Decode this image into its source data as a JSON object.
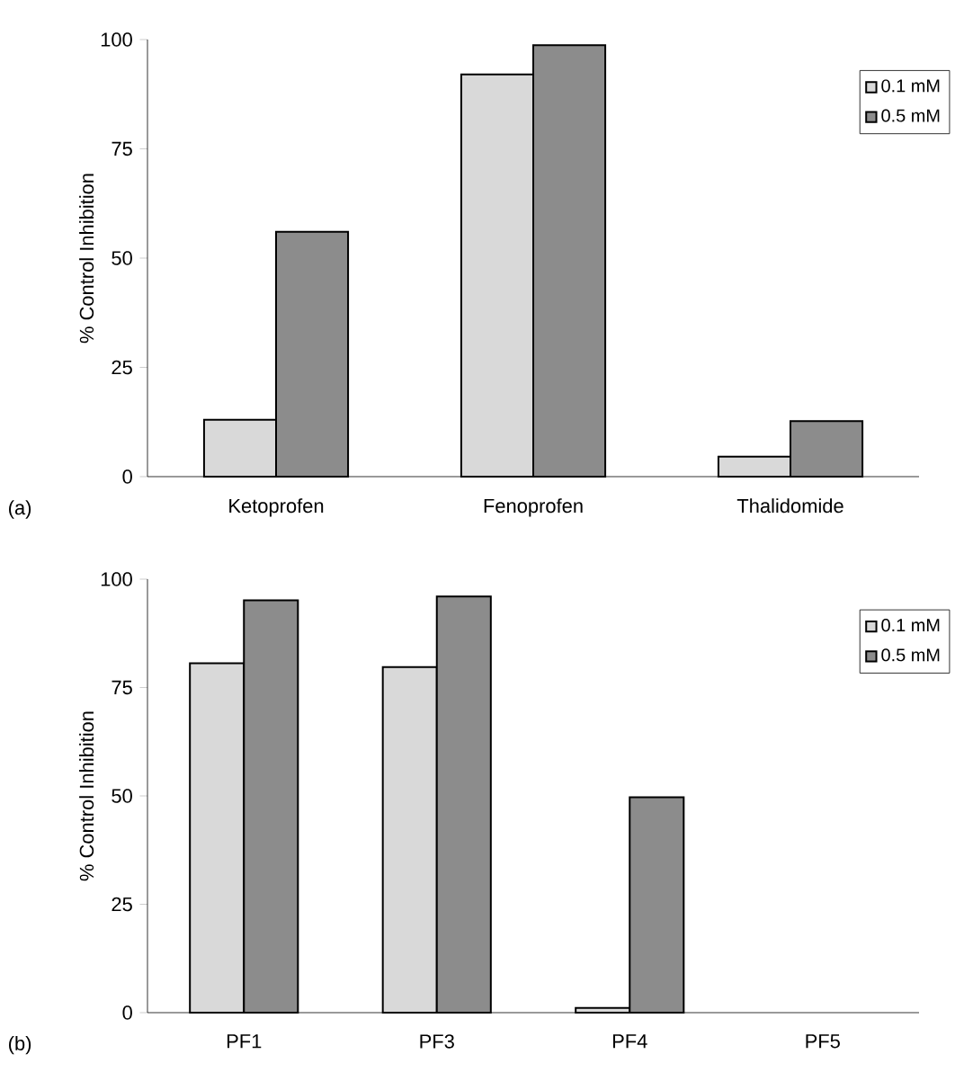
{
  "chart_data": [
    {
      "type": "bar",
      "categories": [
        "Ketoprofen",
        "Fenoprofen",
        "Thalidomide"
      ],
      "ylabel": "% Control Inhibition",
      "ylim": [
        0,
        100
      ],
      "yticks": [
        0,
        25,
        50,
        75,
        100
      ],
      "legend": "top right",
      "annotations": [
        "(a)"
      ],
      "series": [
        {
          "name": "0.1 mM",
          "color": "#d9d9d9",
          "values": [
            13,
            92,
            4.6
          ]
        },
        {
          "name": "0.5 mM",
          "color": "#8c8c8c",
          "values": [
            56,
            98.7,
            12.7
          ]
        }
      ]
    },
    {
      "type": "bar",
      "categories": [
        "PF1",
        "PF3",
        "PF4",
        "PF5"
      ],
      "ylabel": "% Control Inhibition",
      "ylim": [
        0,
        100
      ],
      "yticks": [
        0,
        25,
        50,
        75,
        100
      ],
      "legend": "top right",
      "annotations": [
        "(b)"
      ],
      "series": [
        {
          "name": "0.1 mM",
          "color": "#d9d9d9",
          "values": [
            80.6,
            79.7,
            1.1,
            null
          ]
        },
        {
          "name": "0.5 mM",
          "color": "#8c8c8c",
          "values": [
            95.1,
            96,
            49.7,
            null
          ]
        }
      ]
    }
  ]
}
